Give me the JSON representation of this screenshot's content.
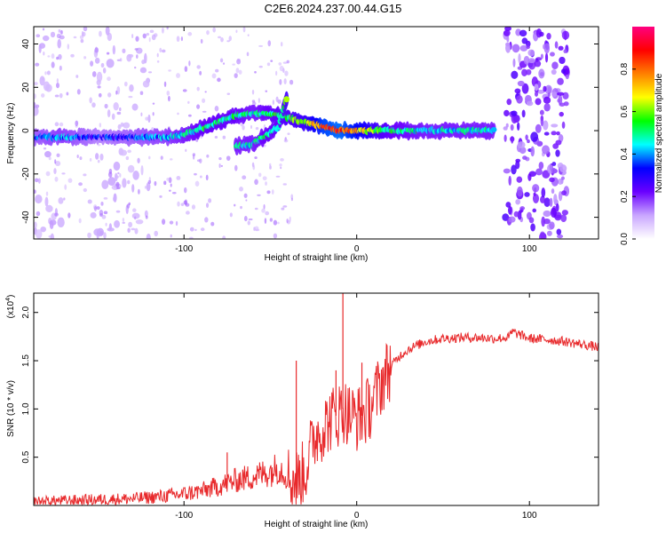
{
  "title": "C2E6.2024.237.00.44.G15",
  "colors": {
    "snr_line": "#e8292b",
    "spectrogram_main": "#7020e0",
    "spectrogram_faint": "#c9a6ff",
    "frame": "#000000"
  },
  "chart_data": [
    {
      "type": "heatmap",
      "xlabel": "Height of straight line (km)",
      "ylabel": "Frequency (Hz)",
      "xlim": [
        -187,
        140
      ],
      "ylim": [
        -50,
        48
      ],
      "x_ticks": [
        -100,
        0,
        100
      ],
      "y_ticks": [
        -40,
        -20,
        0,
        20,
        40
      ],
      "colorbar": {
        "label": "Normalized spectral amplitude",
        "range": [
          0,
          1
        ],
        "ticks": [
          "0.0",
          "0.2",
          "0.4",
          "0.6",
          "0.8"
        ],
        "ticks_values": [
          0,
          0.2,
          0.4,
          0.6,
          0.8
        ],
        "colormap": [
          "#ffffff",
          "#c9a6ff",
          "#6a00ff",
          "#0000ff",
          "#00ffff",
          "#00ff00",
          "#ffff00",
          "#ff8000",
          "#ff0000",
          "#ff0080"
        ]
      },
      "ridge": [
        {
          "x": -187,
          "y": -3,
          "a": 0.35
        },
        {
          "x": -170,
          "y": -3,
          "a": 0.4
        },
        {
          "x": -150,
          "y": -3,
          "a": 0.3
        },
        {
          "x": -130,
          "y": -3,
          "a": 0.35
        },
        {
          "x": -110,
          "y": -3,
          "a": 0.4
        },
        {
          "x": -100,
          "y": -2,
          "a": 0.45
        },
        {
          "x": -90,
          "y": 1,
          "a": 0.5
        },
        {
          "x": -80,
          "y": 4,
          "a": 0.5
        },
        {
          "x": -70,
          "y": 7,
          "a": 0.5
        },
        {
          "x": -60,
          "y": 8,
          "a": 0.45
        },
        {
          "x": -50,
          "y": 8,
          "a": 0.5
        },
        {
          "x": -40,
          "y": 6,
          "a": 0.55
        },
        {
          "x": -30,
          "y": 4,
          "a": 0.6
        },
        {
          "x": -20,
          "y": 2,
          "a": 0.8
        },
        {
          "x": -10,
          "y": 0,
          "a": 0.85
        },
        {
          "x": 0,
          "y": 0,
          "a": 0.75
        },
        {
          "x": 10,
          "y": 0,
          "a": 0.6
        },
        {
          "x": 20,
          "y": 0,
          "a": 0.5
        },
        {
          "x": 40,
          "y": 0,
          "a": 0.45
        },
        {
          "x": 60,
          "y": 0,
          "a": 0.45
        },
        {
          "x": 80,
          "y": 0,
          "a": 0.45
        }
      ],
      "branch": [
        {
          "x": -70,
          "y": -7,
          "a": 0.45
        },
        {
          "x": -60,
          "y": -6,
          "a": 0.45
        },
        {
          "x": -52,
          "y": -2,
          "a": 0.5
        },
        {
          "x": -45,
          "y": 2,
          "a": 0.5
        },
        {
          "x": -40,
          "y": 16,
          "a": 0.6
        }
      ],
      "noise_bands": [
        {
          "x_from": 86,
          "x_to": 122,
          "a": 0.6
        },
        {
          "x_from": -187,
          "x_to": -170,
          "a": 0.2
        },
        {
          "x_from": -155,
          "x_to": -120,
          "a": 0.18
        }
      ]
    },
    {
      "type": "line",
      "xlabel": "Height of straight line (km)",
      "ylabel": "SNR (10 * v/v)",
      "exponent_label": "(x10",
      "exponent_power": "4",
      "exponent_close": ")",
      "xlim": [
        -187,
        140
      ],
      "ylim": [
        0,
        2.2
      ],
      "x_ticks": [
        -100,
        0,
        100
      ],
      "y_ticks": [
        "0.5",
        "1.0",
        "1.5",
        "2.0"
      ],
      "y_ticks_values": [
        0.5,
        1.0,
        1.5,
        2.0
      ],
      "series": [
        {
          "x": [
            -187,
            -170,
            -150,
            -130,
            -115,
            -100,
            -90,
            -80,
            -70,
            -60,
            -50,
            -45,
            -40,
            -35,
            -30,
            -27,
            -25,
            -20,
            -15,
            -10,
            -8,
            -5,
            0,
            5,
            10,
            15,
            20,
            25,
            30,
            40,
            50,
            60,
            70,
            80,
            88,
            90,
            100,
            110,
            120,
            130,
            140
          ],
          "y": [
            0.04,
            0.05,
            0.06,
            0.07,
            0.09,
            0.12,
            0.15,
            0.2,
            0.26,
            0.3,
            0.35,
            0.4,
            0.3,
            0.25,
            0.35,
            0.55,
            0.7,
            0.8,
            0.9,
            0.95,
            1.0,
            0.95,
            0.9,
            0.95,
            1.1,
            1.3,
            1.45,
            1.55,
            1.62,
            1.7,
            1.73,
            1.74,
            1.74,
            1.73,
            1.74,
            1.8,
            1.73,
            1.72,
            1.7,
            1.67,
            1.64
          ]
        }
      ],
      "spikes": [
        {
          "x": -35,
          "y": 1.5
        },
        {
          "x": -8,
          "y": 2.2
        },
        {
          "x": -12,
          "y": 1.4
        },
        {
          "x": 3,
          "y": 1.48
        },
        {
          "x": -75,
          "y": 0.55
        }
      ]
    }
  ]
}
